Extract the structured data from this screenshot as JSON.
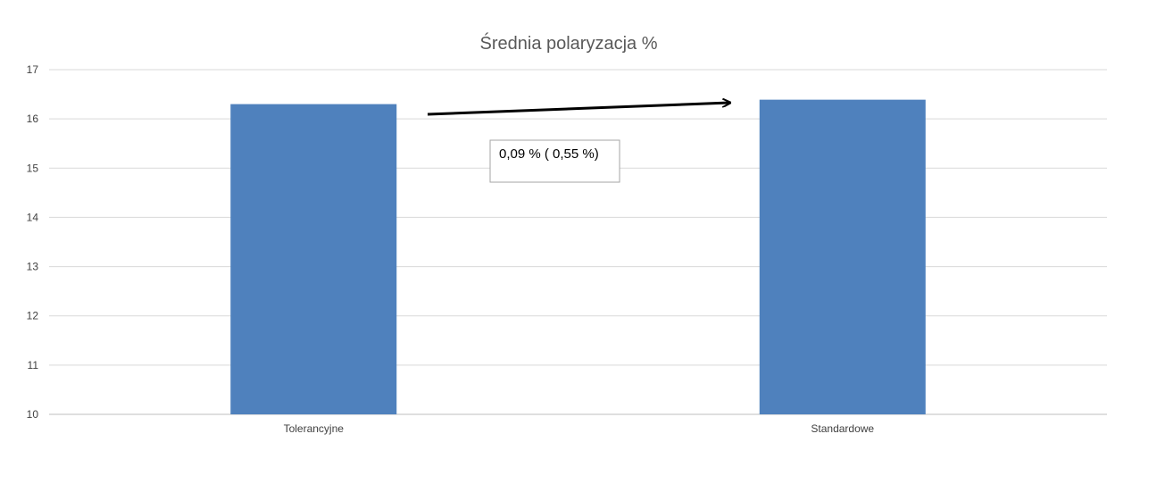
{
  "chart_data": {
    "type": "bar",
    "title": "Średnia polaryzacja %",
    "categories": [
      "Tolerancyjne",
      "Standardowe"
    ],
    "values": [
      16.3,
      16.39
    ],
    "ylim": [
      10,
      17
    ],
    "yticks": [
      10,
      11,
      12,
      13,
      14,
      15,
      16,
      17
    ],
    "grid": true,
    "bar_color": "#4f81bd",
    "annotation": {
      "text": "0,09 % ( 0,55 %)",
      "arrow": "from Tolerancyjne to Standardowe"
    }
  }
}
